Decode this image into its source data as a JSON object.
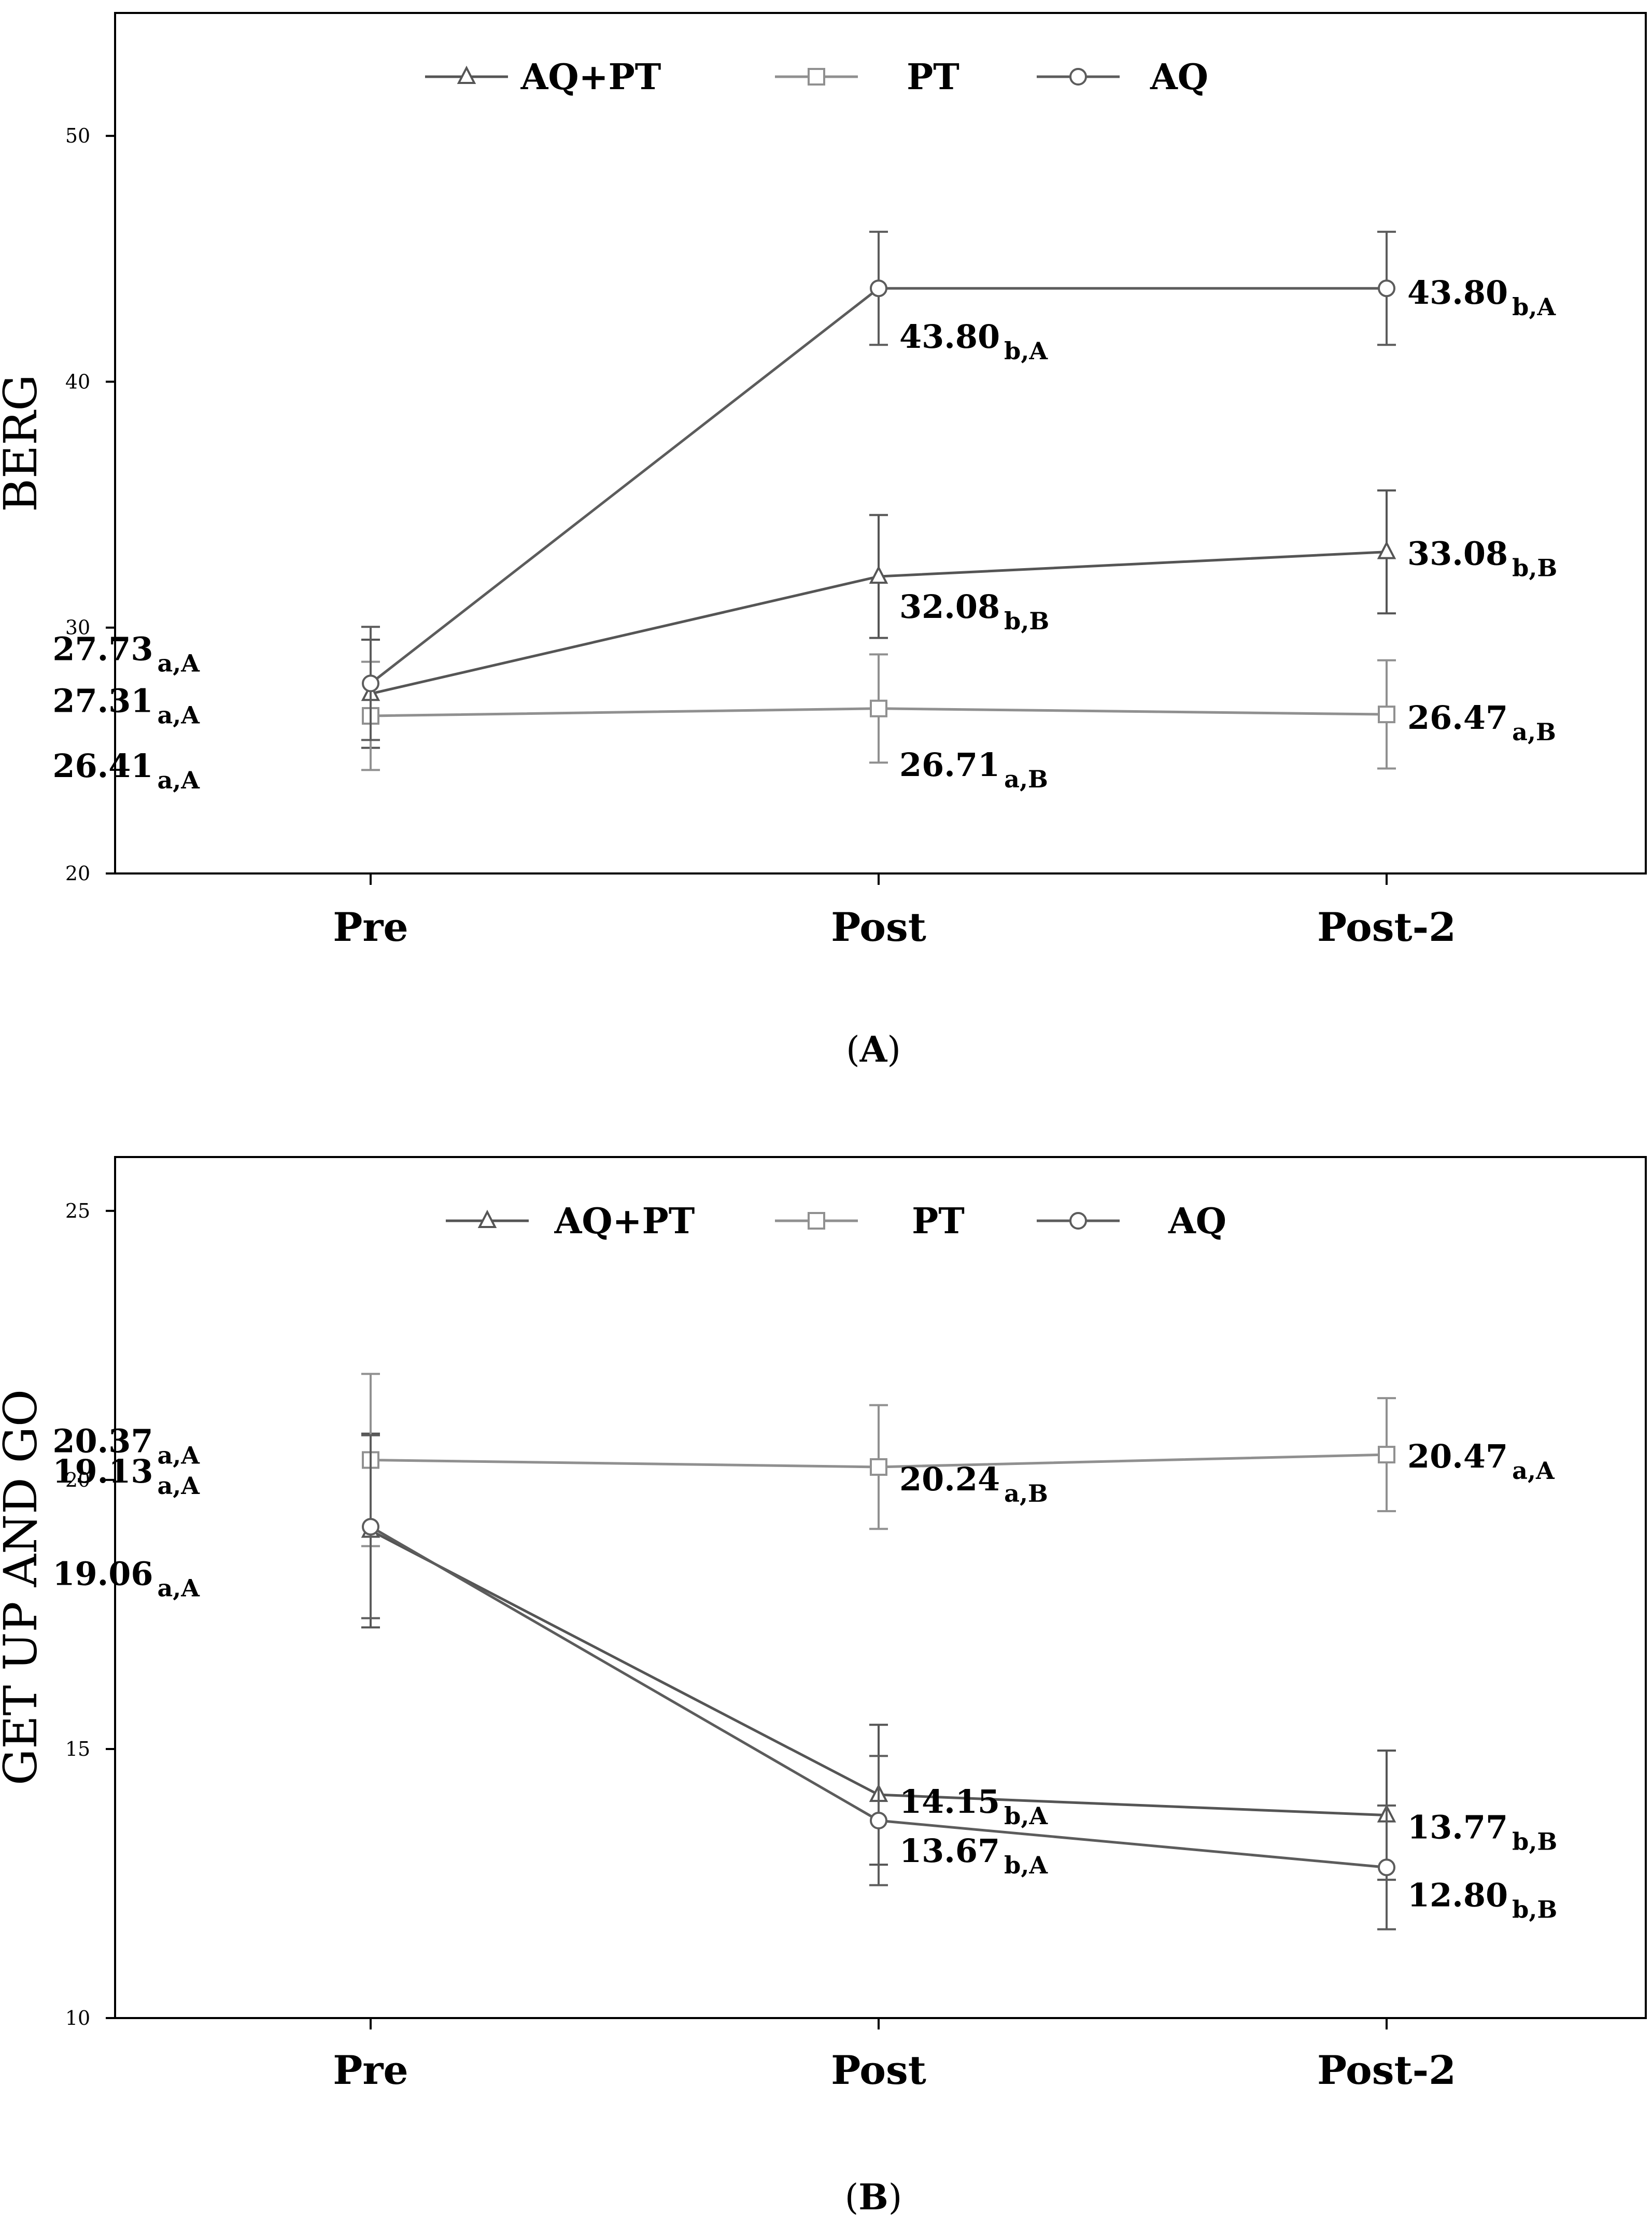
{
  "figure": {
    "caption_a": "A",
    "caption_b": "B"
  },
  "legend_entries": [
    {
      "name": "AQ+PT",
      "marker": "triangle",
      "color": "#555555"
    },
    {
      "name": "PT",
      "marker": "square",
      "color": "#909090"
    },
    {
      "name": "AQ",
      "marker": "circle",
      "color": "#5c5c5c"
    }
  ],
  "chart_data": [
    {
      "type": "line",
      "panel": "A",
      "title": "",
      "xlabel": "",
      "ylabel": "BERG",
      "categories": [
        "Pre",
        "Post",
        "Post-2"
      ],
      "ylim": [
        20,
        55
      ],
      "yticks": [
        20,
        30,
        40,
        50
      ],
      "grid": false,
      "legend": "top-center",
      "series": [
        {
          "name": "AQ+PT",
          "marker": "triangle",
          "color": "#555555",
          "values": [
            27.31,
            32.08,
            33.08
          ],
          "errors": [
            2.2,
            2.5,
            2.5
          ],
          "labels": [
            {
              "value": "27.31",
              "sub": "a,A"
            },
            {
              "value": "32.08",
              "sub": "b,B"
            },
            {
              "value": "33.08",
              "sub": "b,B"
            }
          ]
        },
        {
          "name": "PT",
          "marker": "square",
          "color": "#909090",
          "values": [
            26.41,
            26.71,
            26.47
          ],
          "errors": [
            2.2,
            2.2,
            2.2
          ],
          "labels": [
            {
              "value": "26.41",
              "sub": "a,A"
            },
            {
              "value": "26.71",
              "sub": "a,B"
            },
            {
              "value": "26.47",
              "sub": "a,B"
            }
          ]
        },
        {
          "name": "AQ",
          "marker": "circle",
          "color": "#5c5c5c",
          "values": [
            27.73,
            43.8,
            43.8
          ],
          "errors": [
            2.3,
            2.3,
            2.3
          ],
          "labels": [
            {
              "value": "27.73",
              "sub": "a,A"
            },
            {
              "value": "43.80",
              "sub": "b,A"
            },
            {
              "value": "43.80",
              "sub": "b,A"
            }
          ]
        }
      ]
    },
    {
      "type": "line",
      "panel": "B",
      "title": "",
      "xlabel": "",
      "ylabel": "GET UP AND GO",
      "categories": [
        "Pre",
        "Post",
        "Post-2"
      ],
      "ylim": [
        10,
        26
      ],
      "yticks": [
        10,
        15,
        20,
        25
      ],
      "grid": false,
      "legend": "top-center",
      "series": [
        {
          "name": "AQ+PT",
          "marker": "triangle",
          "color": "#555555",
          "values": [
            19.06,
            14.15,
            13.77
          ],
          "errors": [
            1.8,
            1.3,
            1.2
          ],
          "labels": [
            {
              "value": "19.06",
              "sub": "a,A"
            },
            {
              "value": "14.15",
              "sub": "b,A"
            },
            {
              "value": "13.77",
              "sub": "b,B"
            }
          ]
        },
        {
          "name": "PT",
          "marker": "square",
          "color": "#909090",
          "values": [
            20.37,
            20.24,
            20.47
          ],
          "errors": [
            1.6,
            1.15,
            1.05
          ],
          "labels": [
            {
              "value": "20.37",
              "sub": "a,A"
            },
            {
              "value": "20.24",
              "sub": "a,B"
            },
            {
              "value": "20.47",
              "sub": "a,A"
            }
          ]
        },
        {
          "name": "AQ",
          "marker": "circle",
          "color": "#5c5c5c",
          "values": [
            19.13,
            13.67,
            12.8
          ],
          "errors": [
            1.7,
            1.2,
            1.15
          ],
          "labels": [
            {
              "value": "19.13",
              "sub": "a,A"
            },
            {
              "value": "13.67",
              "sub": "b,A"
            },
            {
              "value": "12.80",
              "sub": "b,B"
            }
          ]
        }
      ]
    }
  ]
}
